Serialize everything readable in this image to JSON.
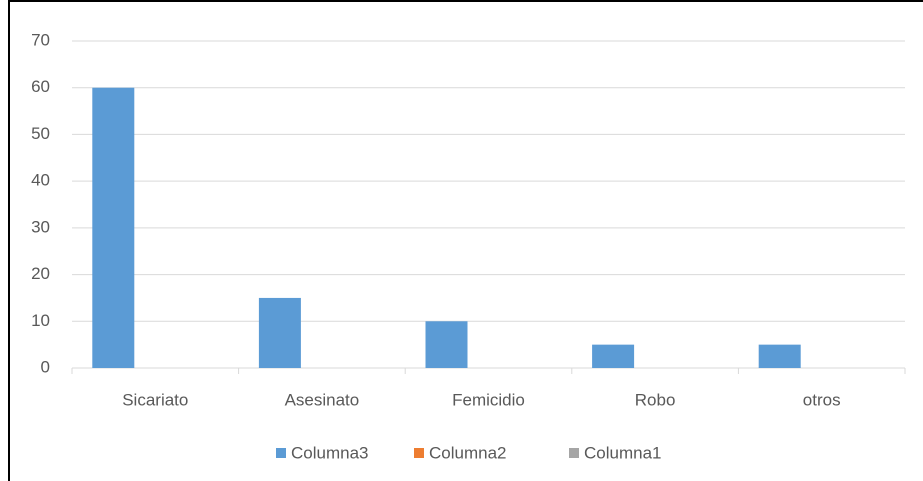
{
  "chart_data": {
    "type": "bar",
    "categories": [
      "Sicariato",
      "Asesinato",
      "Femicidio",
      "Robo",
      "otros"
    ],
    "series": [
      {
        "name": "Columna3",
        "color": "#5b9bd5",
        "values": [
          60,
          15,
          10,
          5,
          5
        ]
      },
      {
        "name": "Columna2",
        "color": "#ed7d31",
        "values": [
          null,
          null,
          null,
          null,
          null
        ]
      },
      {
        "name": "Columna1",
        "color": "#a5a5a5",
        "values": [
          null,
          null,
          null,
          null,
          null
        ]
      }
    ],
    "ylim": [
      0,
      70
    ],
    "yticks": [
      0,
      10,
      20,
      30,
      40,
      50,
      60,
      70
    ],
    "grid": true,
    "legend": "bottom"
  }
}
